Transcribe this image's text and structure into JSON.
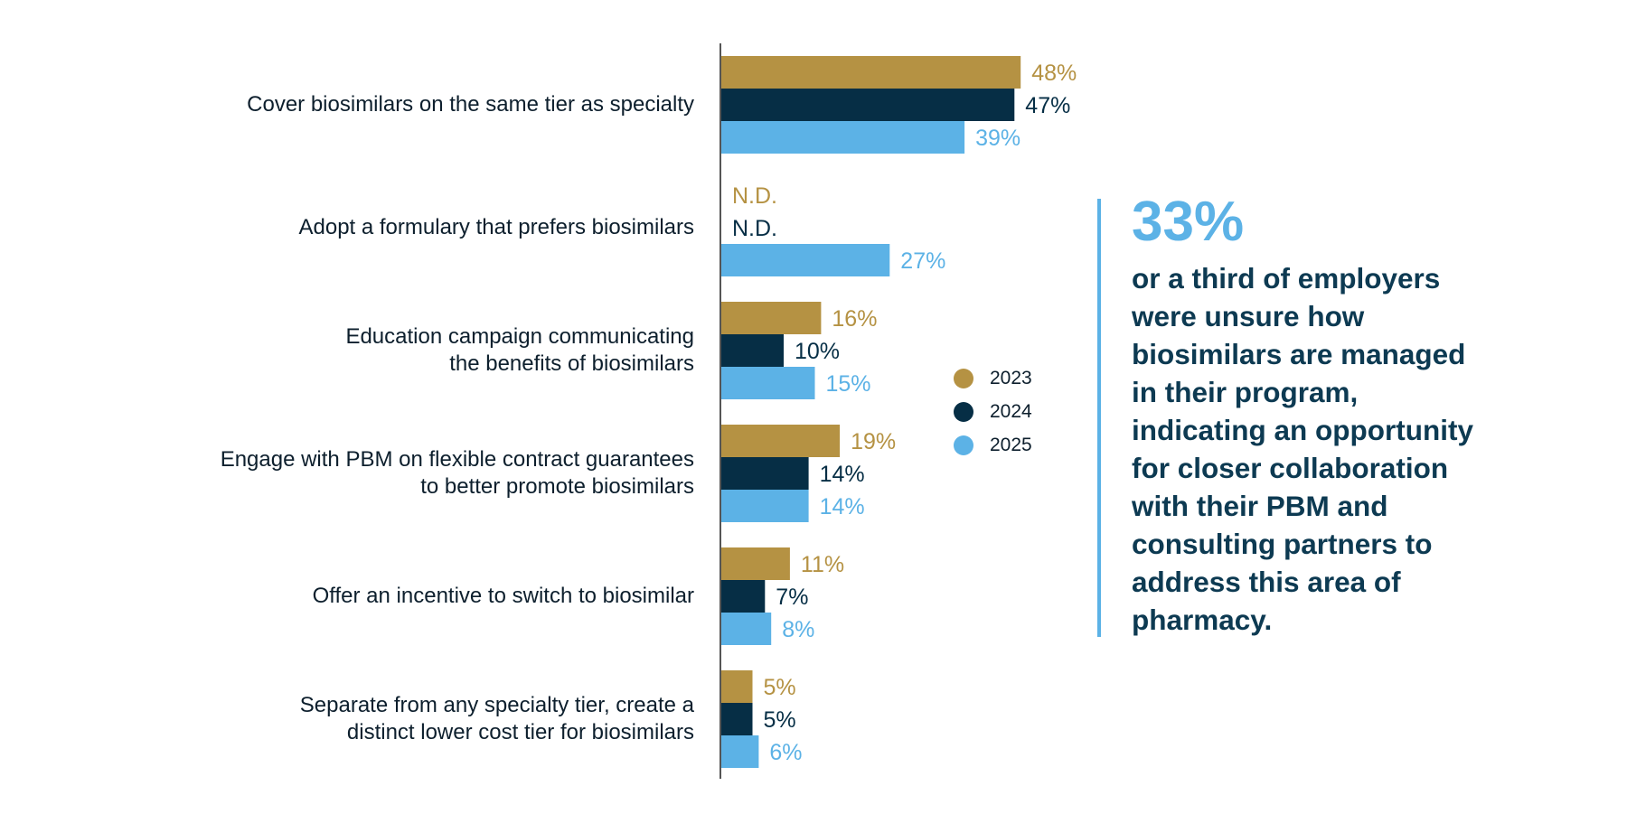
{
  "chart_data": {
    "type": "bar",
    "orientation": "horizontal",
    "categories": [
      "Cover biosimilars on the same tier as specialty",
      "Adopt a formulary that prefers biosimilars",
      "Education campaign communicating\nthe benefits of biosimilars",
      "Engage with PBM on flexible contract guarantees\nto better promote biosimilars",
      "Offer an incentive to switch to biosimilar",
      "Separate from any specialty tier, create a\ndistinct lower cost tier for biosimilars"
    ],
    "series": [
      {
        "name": "2023",
        "color": "#b59243",
        "values": [
          48,
          null,
          16,
          19,
          11,
          5
        ],
        "labels": [
          "48%",
          "N.D.",
          "16%",
          "19%",
          "11%",
          "5%"
        ]
      },
      {
        "name": "2024",
        "color": "#062e45",
        "values": [
          47,
          null,
          10,
          14,
          7,
          5
        ],
        "labels": [
          "47%",
          "N.D.",
          "10%",
          "14%",
          "7%",
          "5%"
        ]
      },
      {
        "name": "2025",
        "color": "#5cb2e6",
        "values": [
          39,
          27,
          15,
          14,
          8,
          6
        ],
        "labels": [
          "39%",
          "27%",
          "15%",
          "14%",
          "8%",
          "6%"
        ]
      }
    ],
    "xlim": [
      0,
      100
    ],
    "grid": false,
    "legend_position": "right"
  },
  "callout": {
    "stat": "33%",
    "text": "or a third of employers were unsure how biosimilars are managed in their program, indicating an opportunity for closer collaboration with their PBM and consulting partners to address this area of pharmacy."
  }
}
